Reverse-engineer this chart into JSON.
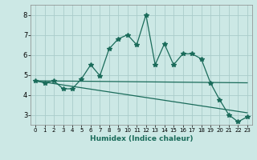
{
  "xlabel": "Humidex (Indice chaleur)",
  "ylabel": "",
  "bg_color": "#cce8e5",
  "grid_color": "#aaccca",
  "line_color": "#1a6b5a",
  "xlim": [
    -0.5,
    23.5
  ],
  "ylim": [
    2.5,
    8.5
  ],
  "yticks": [
    3,
    4,
    5,
    6,
    7,
    8
  ],
  "xticks": [
    0,
    1,
    2,
    3,
    4,
    5,
    6,
    7,
    8,
    9,
    10,
    11,
    12,
    13,
    14,
    15,
    16,
    17,
    18,
    19,
    20,
    21,
    22,
    23
  ],
  "line1_x": [
    0,
    1,
    2,
    3,
    4,
    5,
    6,
    7,
    8,
    9,
    10,
    11,
    12,
    13,
    14,
    15,
    16,
    17,
    18,
    19,
    20,
    21,
    22,
    23
  ],
  "line1_y": [
    4.7,
    4.6,
    4.7,
    4.3,
    4.3,
    4.8,
    5.5,
    4.95,
    6.3,
    6.8,
    7.0,
    6.5,
    8.0,
    5.5,
    6.55,
    5.5,
    6.05,
    6.05,
    5.8,
    4.6,
    3.75,
    3.0,
    2.65,
    2.9
  ],
  "line2_x": [
    0,
    23
  ],
  "line2_y": [
    4.7,
    4.6
  ],
  "line3_x": [
    0,
    23
  ],
  "line3_y": [
    4.7,
    3.1
  ]
}
